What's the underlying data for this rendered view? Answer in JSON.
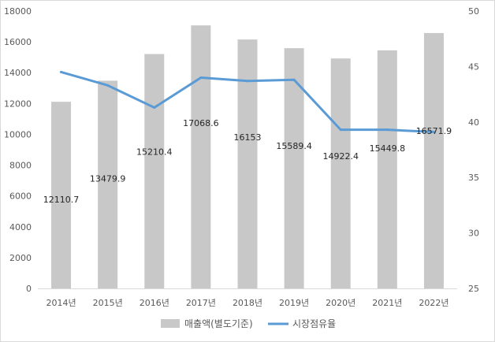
{
  "chart_data": {
    "type": "bar",
    "categories": [
      "2014년",
      "2015년",
      "2016년",
      "2017년",
      "2018년",
      "2019년",
      "2020년",
      "2021년",
      "2022년"
    ],
    "series": [
      {
        "name": "매출액(별도기준)",
        "type": "bar",
        "axis": "left",
        "color": "#c8c8c8",
        "values": [
          12110.7,
          13479.9,
          15210.4,
          17068.6,
          16153,
          15589.4,
          14922.4,
          15449.8,
          16571.9
        ],
        "data_labels": [
          "12110.7",
          "13479.9",
          "15210.4",
          "17068.6",
          "16153",
          "15589.4",
          "14922.4",
          "15449.8",
          "16571.9"
        ]
      },
      {
        "name": "시장점유율",
        "type": "line",
        "axis": "right",
        "color": "#5b9bd5",
        "values": [
          44.5,
          43.3,
          41.3,
          44.0,
          43.7,
          43.8,
          39.3,
          39.3,
          39.1
        ]
      }
    ],
    "y_left": {
      "min": 0,
      "max": 18000,
      "step": 2000,
      "ticks": [
        "0",
        "2000",
        "4000",
        "6000",
        "8000",
        "10000",
        "12000",
        "14000",
        "16000",
        "18000"
      ]
    },
    "y_right": {
      "min": 25,
      "max": 50,
      "step": 5,
      "ticks": [
        "25",
        "30",
        "35",
        "40",
        "45",
        "50"
      ]
    },
    "grid": false,
    "legend": {
      "position": "bottom",
      "items": [
        "매출액(별도기준)",
        "시장점유율"
      ]
    },
    "title": "",
    "xlabel": "",
    "ylabel": ""
  }
}
